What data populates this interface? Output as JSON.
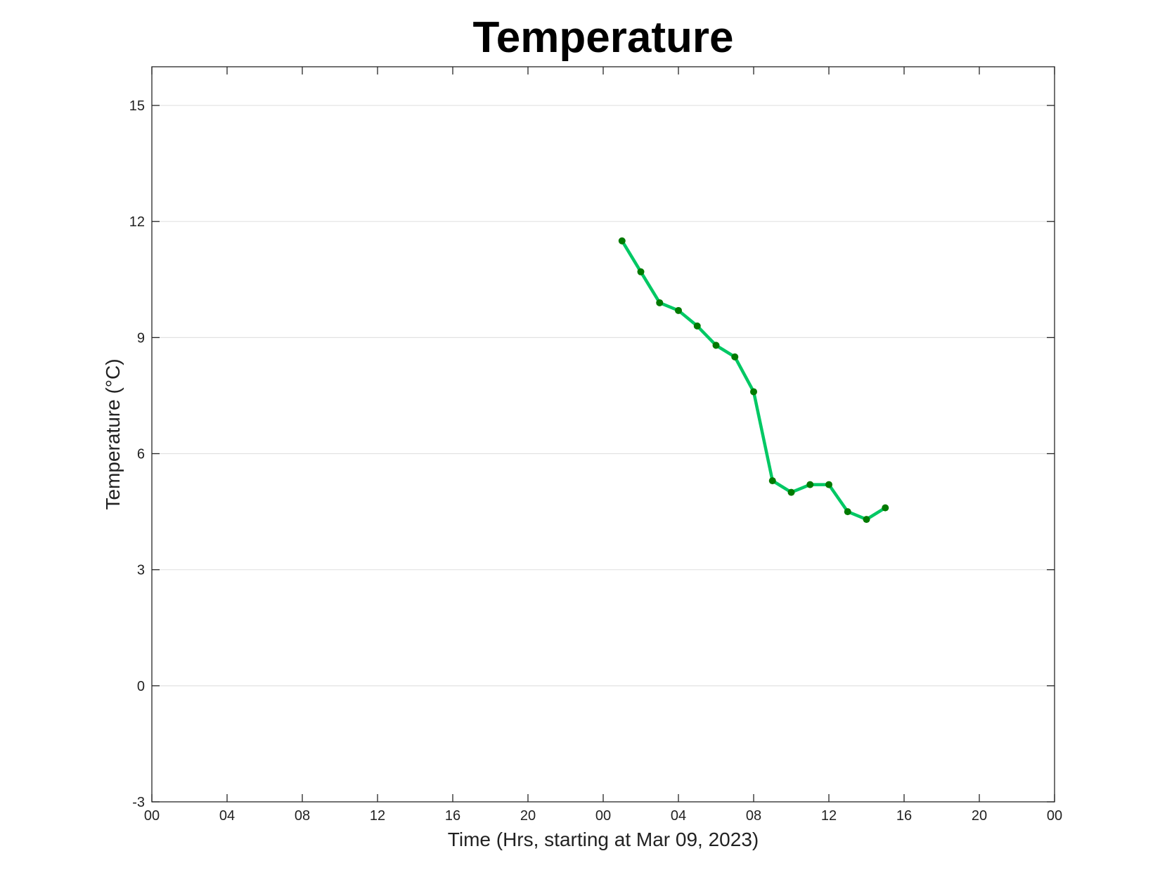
{
  "chart_data": {
    "type": "line",
    "title": "Temperature",
    "xlabel": "Time (Hrs, starting at Mar 09, 2023)",
    "ylabel": "Temperature (°C)",
    "x_unit": "hours",
    "xlim": [
      0,
      48
    ],
    "ylim": [
      -3,
      16
    ],
    "x_ticks": [
      0,
      4,
      8,
      12,
      16,
      20,
      24,
      28,
      32,
      36,
      40,
      44,
      48
    ],
    "x_tick_labels": [
      "00",
      "04",
      "08",
      "12",
      "16",
      "20",
      "00",
      "04",
      "08",
      "12",
      "16",
      "20",
      "00"
    ],
    "y_ticks": [
      -3,
      0,
      3,
      6,
      9,
      12,
      15
    ],
    "y_tick_labels": [
      "-3",
      "0",
      "3",
      "6",
      "9",
      "12",
      "15"
    ],
    "grid": "horizontal",
    "series": [
      {
        "color": "#00c864",
        "marker_color": "#007a00",
        "x": [
          25,
          26,
          27,
          28,
          29,
          30,
          31,
          32,
          33,
          34,
          35,
          36,
          37,
          38,
          39
        ],
        "y": [
          11.5,
          10.7,
          9.9,
          9.7,
          9.3,
          8.8,
          8.5,
          7.6,
          5.3,
          5.0,
          5.2,
          5.2,
          4.5,
          4.3,
          4.6
        ]
      }
    ]
  }
}
